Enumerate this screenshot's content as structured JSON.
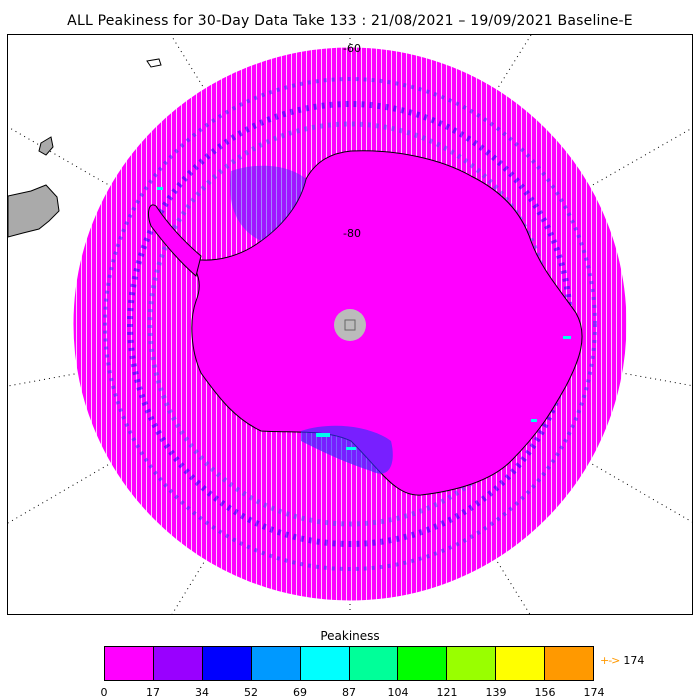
{
  "title": "ALL Peakiness for 30-Day Data Take 133 : 21/08/2021 – 19/09/2021 Baseline-E",
  "map": {
    "projection": "south-polar-stereographic",
    "lat_labels": [
      "-60",
      "-80"
    ],
    "land_color": "#ff00ff",
    "pole_hole_color": "#bbbbbb",
    "outside_land_color": "#aaaaaa",
    "coastline_color": "#000000"
  },
  "legend": {
    "title": "Peakiness",
    "colors": [
      "#ff00ff",
      "#9900ff",
      "#0000ff",
      "#0099ff",
      "#00ffff",
      "#00ff99",
      "#00ff00",
      "#99ff00",
      "#ffff00",
      "#ff9900"
    ],
    "ticks": [
      "0",
      "17",
      "34",
      "52",
      "69",
      "87",
      "104",
      "121",
      "139",
      "156",
      "174"
    ],
    "overflow_label": "174",
    "overflow_arrow": "+->",
    "overflow_color": "#ff9900"
  }
}
